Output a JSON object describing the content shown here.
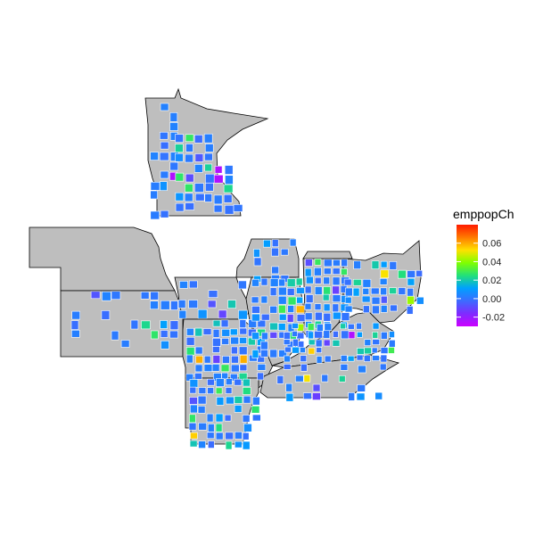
{
  "legend": {
    "title": "emppopCh",
    "ticks": [
      "0.06",
      "0.04",
      "0.02",
      "0.00",
      "-0.02"
    ],
    "tick_values": [
      0.06,
      0.04,
      0.02,
      0.0,
      -0.02
    ],
    "range": [
      -0.03,
      0.08
    ],
    "gradient_colors": [
      "#cc00ff",
      "#7f2bff",
      "#3d6bff",
      "#00a0ff",
      "#22e07a",
      "#7fff00",
      "#ffe100",
      "#ff7a00",
      "#ff1a00"
    ]
  },
  "colors": {
    "state_fill": "#bebebe",
    "county_border": "#ffffff",
    "state_border": "#000000"
  }
}
